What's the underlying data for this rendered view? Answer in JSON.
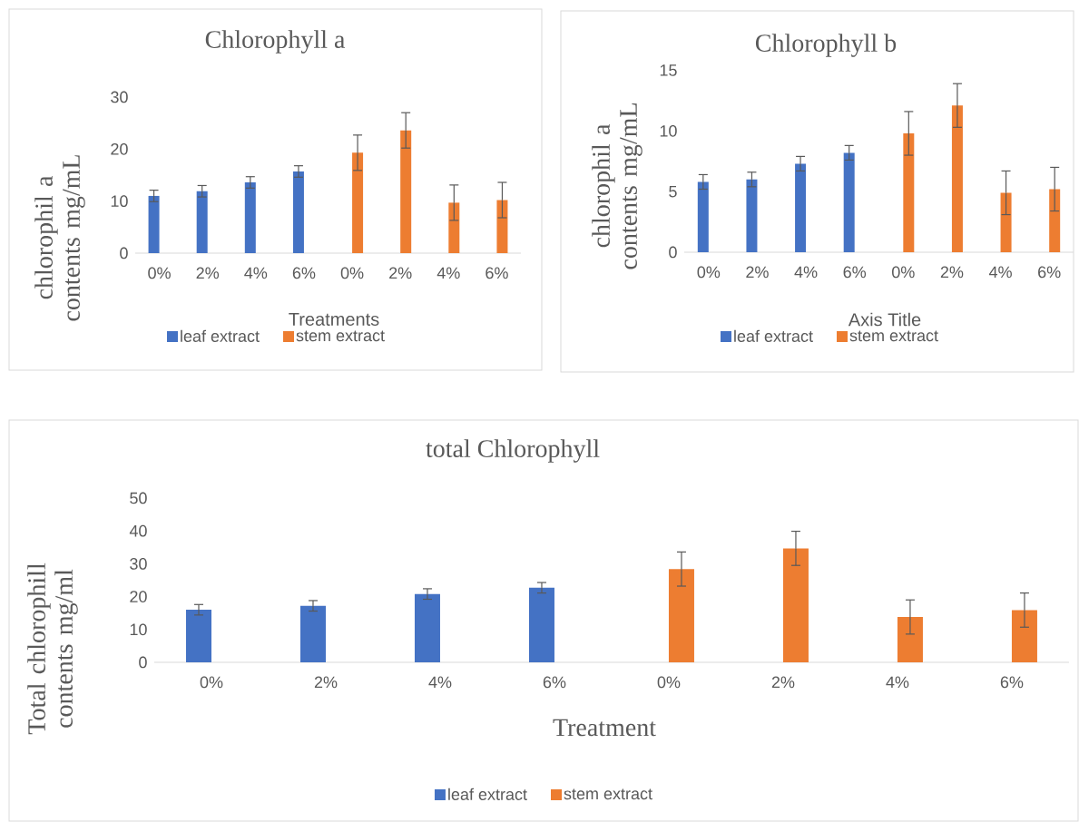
{
  "chart_data": [
    {
      "type": "bar",
      "title": "Chlorophyll a",
      "xlabel": "Treatments",
      "ylabel": "chlorophil a contents mg/mL",
      "categories": [
        "0%",
        "2%",
        "4%",
        "6%",
        "0%",
        "2%",
        "4%",
        "6%"
      ],
      "ylim": [
        0,
        30
      ],
      "yticks": [
        0,
        10,
        20,
        30
      ],
      "legend": "bottom",
      "series": [
        {
          "name": "leaf extract",
          "color": "#4472c4",
          "values": [
            11.0,
            11.9,
            13.6,
            15.7,
            null,
            null,
            null,
            null
          ],
          "errors": [
            1.1,
            1.1,
            1.1,
            1.1,
            null,
            null,
            null,
            null
          ]
        },
        {
          "name": "stem extract",
          "color": "#ed7d31",
          "values": [
            null,
            null,
            null,
            null,
            19.3,
            23.6,
            9.7,
            10.2
          ],
          "errors": [
            null,
            null,
            null,
            null,
            3.4,
            3.4,
            3.4,
            3.4
          ]
        }
      ]
    },
    {
      "type": "bar",
      "title": "Chlorophyll b",
      "xlabel": "Axis Title",
      "ylabel": "chlorophil a contents mg/mL",
      "categories": [
        "0%",
        "2%",
        "4%",
        "6%",
        "0%",
        "2%",
        "4%",
        "6%"
      ],
      "ylim": [
        0,
        15
      ],
      "yticks": [
        0,
        5,
        10,
        15
      ],
      "legend": "bottom",
      "series": [
        {
          "name": "leaf extract",
          "color": "#4472c4",
          "values": [
            5.8,
            6.0,
            7.3,
            8.2,
            null,
            null,
            null,
            null
          ],
          "errors": [
            0.6,
            0.6,
            0.6,
            0.6,
            null,
            null,
            null,
            null
          ]
        },
        {
          "name": "stem extract",
          "color": "#ed7d31",
          "values": [
            null,
            null,
            null,
            null,
            9.8,
            12.1,
            4.9,
            5.2
          ],
          "errors": [
            null,
            null,
            null,
            null,
            1.8,
            1.8,
            1.8,
            1.8
          ]
        }
      ]
    },
    {
      "type": "bar",
      "title": "total Chlorophyll",
      "xlabel": "Treatment",
      "ylabel": "Total chlorophill contents mg/ml",
      "categories": [
        "0%",
        "2%",
        "4%",
        "6%",
        "0%",
        "2%",
        "4%",
        "6%"
      ],
      "ylim": [
        0,
        50
      ],
      "yticks": [
        0,
        10,
        20,
        30,
        40,
        50
      ],
      "legend": "bottom",
      "series": [
        {
          "name": "leaf extract",
          "color": "#4472c4",
          "values": [
            16.0,
            17.2,
            20.8,
            22.7,
            null,
            null,
            null,
            null
          ],
          "errors": [
            1.6,
            1.6,
            1.6,
            1.6,
            null,
            null,
            null,
            null
          ]
        },
        {
          "name": "stem extract",
          "color": "#ed7d31",
          "values": [
            null,
            null,
            null,
            null,
            28.4,
            34.7,
            13.8,
            15.9
          ],
          "errors": [
            null,
            null,
            null,
            null,
            5.2,
            5.2,
            5.2,
            5.2
          ]
        }
      ]
    }
  ]
}
